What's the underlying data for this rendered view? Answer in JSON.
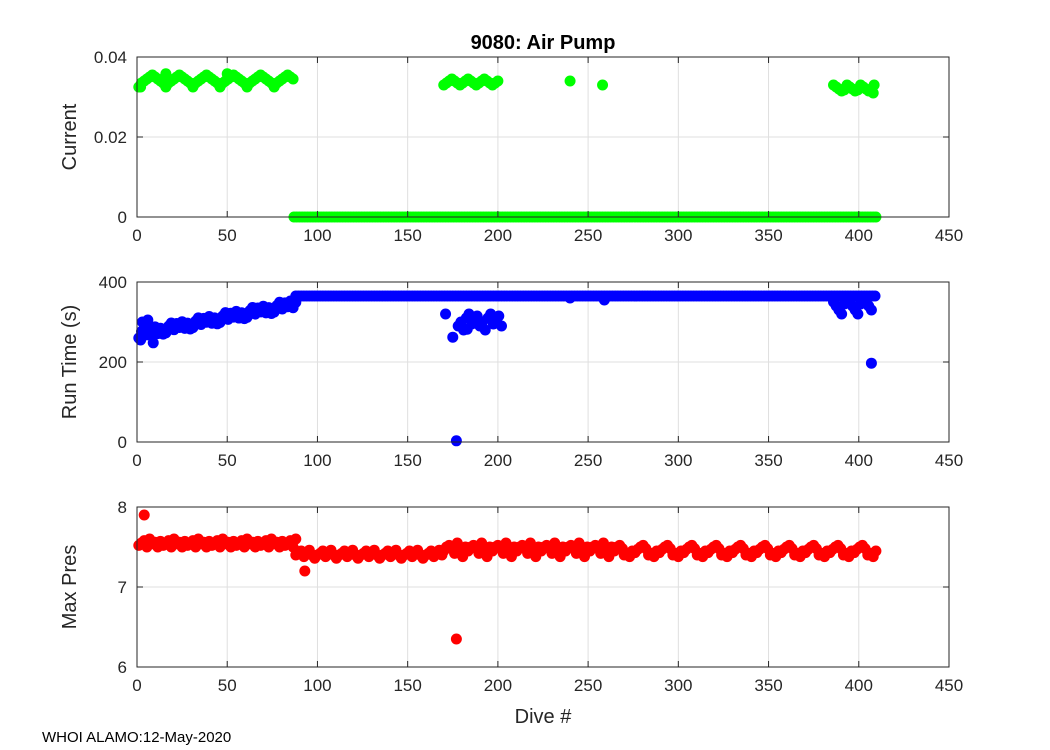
{
  "footer": "WHOI ALAMO:12-May-2020",
  "colors": {
    "current": "#00ff00",
    "runtime": "#0000ff",
    "maxpres": "#ff0000"
  },
  "chart_data": [
    {
      "type": "scatter",
      "title": "9080: Air Pump",
      "xlabel": "",
      "ylabel": "Current",
      "xlim": [
        0,
        450
      ],
      "ylim": [
        0,
        0.04
      ],
      "xticks": [
        0,
        50,
        100,
        150,
        200,
        250,
        300,
        350,
        400,
        450
      ],
      "yticks": [
        0,
        0.02,
        0.04
      ],
      "ytick_labels": [
        "0",
        "0.02",
        "0.04"
      ],
      "grid": true,
      "color_key": "current",
      "segments": [
        {
          "x_start": 1,
          "x_end": 87,
          "step": 1.5,
          "y_values": [
            0.0325,
            0.0335,
            0.034,
            0.0345,
            0.035,
            0.0355,
            0.035,
            0.0345,
            0.034,
            0.0335
          ]
        },
        {
          "x_start": 87,
          "x_end": 410,
          "step": 1.5,
          "y_values": [
            0.0
          ]
        },
        {
          "x_start": 170,
          "x_end": 200,
          "step": 1.5,
          "y_values": [
            0.033,
            0.0335,
            0.034,
            0.0345,
            0.034,
            0.0335
          ]
        },
        {
          "x_start": 386,
          "x_end": 409,
          "step": 1.5,
          "y_values": [
            0.033,
            0.0325,
            0.032,
            0.0315,
            0.0318
          ]
        }
      ],
      "points": [
        {
          "x": 2,
          "y": 0.0325
        },
        {
          "x": 16,
          "y": 0.0358
        },
        {
          "x": 50,
          "y": 0.0358
        },
        {
          "x": 240,
          "y": 0.034
        },
        {
          "x": 258,
          "y": 0.033
        },
        {
          "x": 408,
          "y": 0.031
        }
      ]
    },
    {
      "type": "scatter",
      "title": "",
      "xlabel": "",
      "ylabel": "Run Time (s)",
      "xlim": [
        0,
        450
      ],
      "ylim": [
        0,
        400
      ],
      "xticks": [
        0,
        50,
        100,
        150,
        200,
        250,
        300,
        350,
        400,
        450
      ],
      "yticks": [
        0,
        200,
        400
      ],
      "ytick_labels": [
        "0",
        "200",
        "400"
      ],
      "grid": true,
      "color_key": "runtime",
      "segments": [
        {
          "x_start": 1,
          "x_end": 88,
          "step": 1.5,
          "y_ramp": [
            270,
            345
          ],
          "jitter": [
            -10,
            5,
            12,
            -6,
            8,
            -3,
            10,
            -8,
            4,
            -12
          ]
        },
        {
          "x_start": 88,
          "x_end": 410,
          "step": 1.5,
          "y_values": [
            365
          ]
        },
        {
          "x_start": 178,
          "x_end": 202,
          "step": 1.5,
          "y_values": [
            290,
            300,
            280,
            310,
            320,
            295,
            305,
            315
          ]
        },
        {
          "x_start": 386,
          "x_end": 408,
          "step": 1.5,
          "y_values": [
            350,
            340,
            330,
            320,
            345,
            355
          ]
        }
      ],
      "points": [
        {
          "x": 2,
          "y": 255
        },
        {
          "x": 3,
          "y": 300
        },
        {
          "x": 6,
          "y": 305
        },
        {
          "x": 8,
          "y": 280
        },
        {
          "x": 9,
          "y": 248
        },
        {
          "x": 11,
          "y": 275
        },
        {
          "x": 171,
          "y": 320
        },
        {
          "x": 175,
          "y": 262
        },
        {
          "x": 177,
          "y": 3
        },
        {
          "x": 183,
          "y": 282
        },
        {
          "x": 240,
          "y": 360
        },
        {
          "x": 259,
          "y": 355
        },
        {
          "x": 407,
          "y": 197
        }
      ]
    },
    {
      "type": "scatter",
      "title": "",
      "xlabel": "Dive #",
      "ylabel": "Max Pres",
      "xlim": [
        0,
        450
      ],
      "ylim": [
        6,
        8
      ],
      "xticks": [
        0,
        50,
        100,
        150,
        200,
        250,
        300,
        350,
        400,
        450
      ],
      "yticks": [
        6,
        7,
        8
      ],
      "ytick_labels": [
        "6",
        "7",
        "8"
      ],
      "grid": true,
      "color_key": "maxpres",
      "segments": [
        {
          "x_start": 1,
          "x_end": 88,
          "step": 1.5,
          "y_values": [
            7.52,
            7.55,
            7.58,
            7.5,
            7.6,
            7.54,
            7.56,
            7.5,
            7.57
          ]
        },
        {
          "x_start": 88,
          "x_end": 170,
          "step": 1.5,
          "y_values": [
            7.4,
            7.42,
            7.45,
            7.38,
            7.43,
            7.46,
            7.4,
            7.36
          ]
        },
        {
          "x_start": 170,
          "x_end": 270,
          "step": 1.5,
          "y_values": [
            7.45,
            7.5,
            7.52,
            7.48,
            7.42,
            7.55,
            7.47,
            7.38,
            7.5
          ]
        },
        {
          "x_start": 270,
          "x_end": 410,
          "step": 1.5,
          "y_values": [
            7.4,
            7.42,
            7.38,
            7.45,
            7.43,
            7.47,
            7.5,
            7.52,
            7.48
          ]
        }
      ],
      "points": [
        {
          "x": 4,
          "y": 7.9
        },
        {
          "x": 93,
          "y": 7.2
        },
        {
          "x": 177,
          "y": 6.35
        }
      ]
    }
  ]
}
